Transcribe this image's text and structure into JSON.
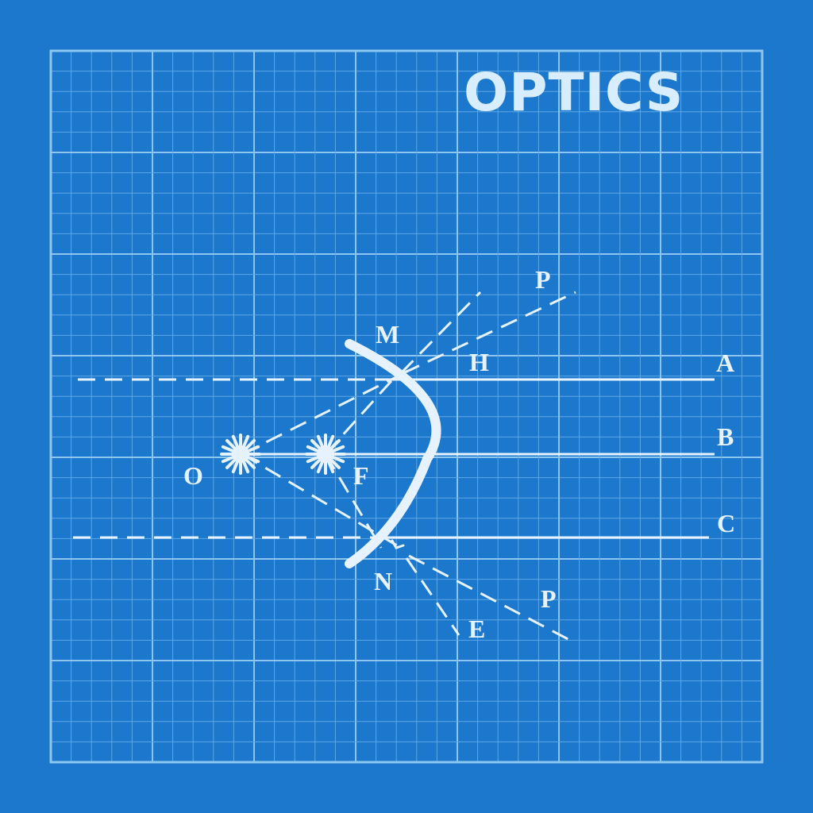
{
  "title": "OPTICS",
  "colors": {
    "background": "#1b78cc",
    "grid_major": "#8ec6f2",
    "grid_minor": "#5ea6e4",
    "ink": "#e6f3ff"
  },
  "labels": {
    "M": "M",
    "H": "H",
    "A": "A",
    "B": "B",
    "C": "C",
    "O": "O",
    "F": "F",
    "N": "N",
    "E": "E",
    "P_top": "P",
    "P_bottom": "P"
  },
  "icons": {
    "object_point": "starburst-icon",
    "focus_point": "starburst-icon"
  }
}
